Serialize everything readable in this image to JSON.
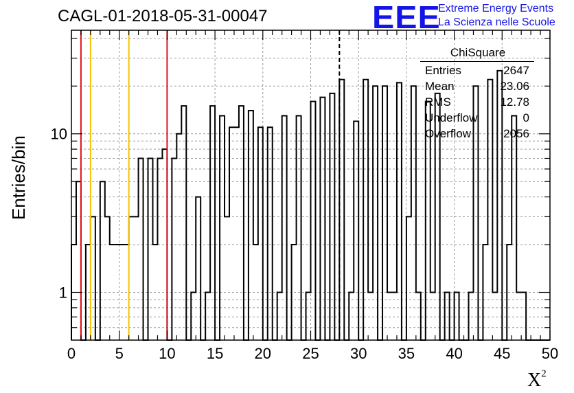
{
  "title": "CAGL-01-2018-05-31-00047",
  "logo": {
    "mark": "EEE",
    "line1": "Extreme Energy Events",
    "line2": "La Scienza nelle Scuole",
    "color": "#1414e6"
  },
  "stats_box": {
    "title": "ChiSquare",
    "rows": [
      {
        "label": "Entries",
        "value": "2647"
      },
      {
        "label": "Mean",
        "value": "23.06"
      },
      {
        "label": "RMS",
        "value": "12.78"
      },
      {
        "label": "Underflow",
        "value": "0"
      },
      {
        "label": "Overflow",
        "value": "2056"
      }
    ]
  },
  "chart_data": {
    "type": "histogram",
    "title": "CAGL-01-2018-05-31-00047",
    "xlabel": "X",
    "xlabel_superscript": "2",
    "ylabel": "Entries/bin",
    "xlim": [
      0,
      50
    ],
    "ylim": [
      0.5,
      45
    ],
    "yscale": "log",
    "grid": true,
    "bin_width": 0.5,
    "x_ticks": [
      0,
      5,
      10,
      15,
      20,
      25,
      30,
      35,
      40,
      45,
      50
    ],
    "y_ticks": [
      1,
      10
    ],
    "bin_values": [
      2,
      5,
      0,
      2,
      3,
      0,
      5,
      3,
      2,
      2,
      2,
      2,
      3,
      3,
      7,
      0,
      7,
      2,
      7,
      8,
      0,
      7,
      10,
      15,
      0,
      1,
      4,
      0,
      1,
      15,
      0,
      13,
      3,
      11,
      11,
      15,
      0,
      14,
      2,
      11,
      0,
      11,
      0,
      1,
      13,
      0,
      2,
      13,
      0,
      1,
      16,
      0,
      17,
      0,
      18,
      0,
      22,
      0,
      1,
      12,
      0,
      22,
      1,
      20,
      0,
      20,
      1,
      1,
      21,
      0,
      3,
      20,
      1,
      0,
      16,
      1,
      18,
      0,
      1,
      0,
      1,
      0,
      0,
      1,
      20,
      0,
      2,
      22,
      1,
      25,
      0,
      2,
      13,
      1,
      1,
      0,
      0,
      0,
      0,
      0
    ],
    "vlines": [
      {
        "x": 1,
        "color": "#e0141e",
        "style": "solid"
      },
      {
        "x": 10,
        "color": "#e0141e",
        "style": "solid"
      },
      {
        "x": 2,
        "color": "#f5c400",
        "style": "solid"
      },
      {
        "x": 6,
        "color": "#f5c400",
        "style": "solid"
      },
      {
        "x": 28,
        "color": "#000000",
        "style": "dashed"
      }
    ]
  }
}
